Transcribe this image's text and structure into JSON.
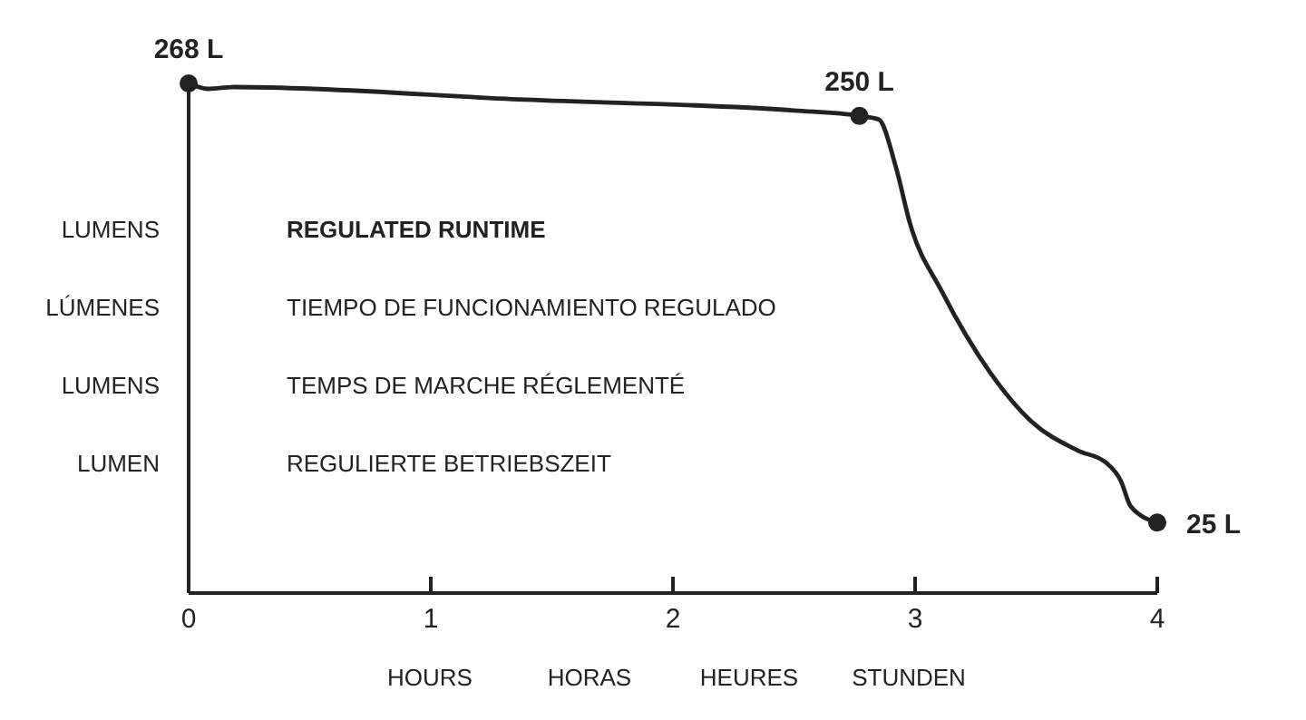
{
  "chart_data": {
    "type": "line",
    "xlabel": "HOURS HORAS HEURES STUNDEN",
    "annotations": [
      "LUMENS",
      "REGULATED RUNTIME",
      "LÚMENES",
      "TIEMPO DE FUNCIONAMIENTO REGULADO",
      "LUMENS",
      "TEMPS DE MARCHE RÉGLEMENTÉ",
      "LUMEN",
      "REGULIERTE BETRIEBSZEIT"
    ],
    "series": [
      {
        "color": "#222222",
        "x": [
          0,
          0.08,
          0.19,
          1.39,
          2.5,
          2.77,
          2.85,
          2.92,
          2.98,
          3.11,
          3.31,
          3.48,
          3.67,
          3.79,
          3.85,
          3.89,
          4
        ],
        "values": [
          268,
          265,
          266,
          259,
          253,
          250,
          248,
          222,
          190,
          153,
          108,
          81,
          65,
          58,
          48,
          34,
          25
        ],
        "value_labels": [
          "268 L",
          null,
          null,
          null,
          null,
          "250 L",
          null,
          null,
          null,
          null,
          null,
          null,
          null,
          null,
          null,
          null,
          "25 L"
        ]
      }
    ],
    "xlim": [
      0,
      4
    ],
    "xticks": [
      0,
      1,
      2,
      3,
      4
    ],
    "ylim": [
      -14,
      268
    ],
    "tick_labels": "x"
  }
}
